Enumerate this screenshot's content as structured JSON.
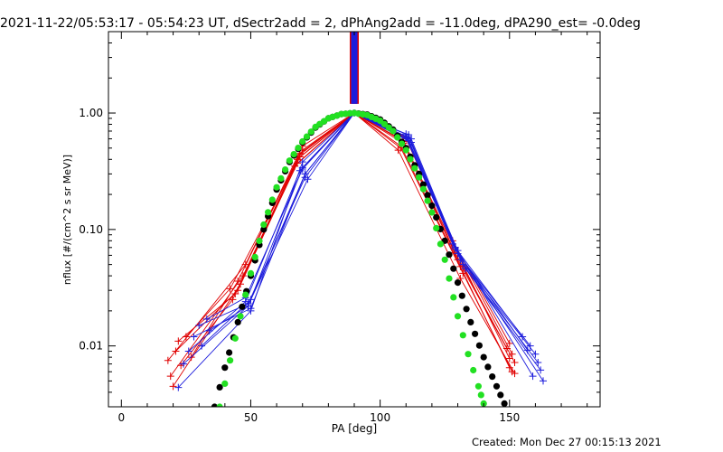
{
  "chart_data": {
    "type": "line",
    "title": "2021-11-22/05:53:17 - 05:54:23 UT, dSectr2add = 2, dPhAng2add = -11.0deg, dPA290_est= -0.0deg",
    "xlabel": "PA [deg]",
    "ylabel": "nflux [#/(cm^2 s sr MeV)]",
    "xlim": [
      -5,
      185
    ],
    "ylim": [
      0.003,
      5
    ],
    "yscale": "log",
    "xticks": [
      0,
      50,
      100,
      150
    ],
    "xtick_labels": [
      "0",
      "50",
      "100",
      "150"
    ],
    "yticks": [
      0.01,
      0.1,
      1.0
    ],
    "ytick_labels": [
      "0.01",
      "0.10",
      "1.00"
    ],
    "grid": false,
    "colors": {
      "red": "#e00000",
      "blue": "#1c1cdc",
      "green": "#22e022",
      "black": "#000000"
    },
    "series": [
      {
        "color": "red",
        "marker": "+",
        "x": [
          18,
          48,
          70,
          90,
          110,
          128,
          150
        ],
        "y": [
          0.0075,
          0.05,
          0.52,
          1.0,
          0.62,
          0.08,
          0.0105
        ]
      },
      {
        "color": "red",
        "marker": "+",
        "x": [
          19,
          47,
          70,
          90,
          110,
          129,
          151
        ],
        "y": [
          0.0055,
          0.04,
          0.48,
          1.0,
          0.6,
          0.07,
          0.0085
        ]
      },
      {
        "color": "red",
        "marker": "+",
        "x": [
          20,
          46,
          69,
          90,
          109,
          129,
          152
        ],
        "y": [
          0.0045,
          0.034,
          0.44,
          1.0,
          0.58,
          0.063,
          0.0072
        ]
      },
      {
        "color": "red",
        "marker": "+",
        "x": [
          21,
          45,
          69,
          90,
          109,
          130,
          149
        ],
        "y": [
          0.009,
          0.03,
          0.42,
          1.0,
          0.55,
          0.055,
          0.0095
        ]
      },
      {
        "color": "red",
        "marker": "+",
        "x": [
          22,
          44,
          68,
          90,
          108,
          131,
          150
        ],
        "y": [
          0.011,
          0.028,
          0.4,
          1.0,
          0.52,
          0.048,
          0.0065
        ]
      },
      {
        "color": "red",
        "marker": "+",
        "x": [
          23,
          43,
          68,
          90,
          108,
          132,
          151
        ],
        "y": [
          0.0068,
          0.025,
          0.37,
          1.0,
          0.5,
          0.042,
          0.006
        ]
      },
      {
        "color": "red",
        "marker": "+",
        "x": [
          25,
          42,
          67,
          90,
          107,
          131,
          152
        ],
        "y": [
          0.012,
          0.031,
          0.35,
          1.0,
          0.48,
          0.038,
          0.0058
        ]
      },
      {
        "color": "red",
        "marker": "+",
        "x": [
          27,
          45,
          69,
          90,
          109,
          128,
          150
        ],
        "y": [
          0.008,
          0.036,
          0.45,
          1.0,
          0.57,
          0.075,
          0.0078
        ]
      },
      {
        "color": "blue",
        "marker": "+",
        "x": [
          22,
          50,
          70,
          90,
          111,
          129,
          155
        ],
        "y": [
          0.0044,
          0.02,
          0.38,
          1.0,
          0.65,
          0.07,
          0.012
        ]
      },
      {
        "color": "blue",
        "marker": "+",
        "x": [
          24,
          49,
          70,
          90,
          110,
          130,
          158
        ],
        "y": [
          0.007,
          0.022,
          0.34,
          1.0,
          0.63,
          0.062,
          0.01
        ]
      },
      {
        "color": "blue",
        "marker": "+",
        "x": [
          26,
          48,
          69,
          90,
          110,
          131,
          160
        ],
        "y": [
          0.009,
          0.024,
          0.32,
          1.0,
          0.61,
          0.055,
          0.0085
        ]
      },
      {
        "color": "blue",
        "marker": "+",
        "x": [
          28,
          50,
          71,
          90,
          112,
          132,
          161
        ],
        "y": [
          0.012,
          0.021,
          0.3,
          1.0,
          0.6,
          0.05,
          0.0072
        ]
      },
      {
        "color": "blue",
        "marker": "+",
        "x": [
          30,
          49,
          71,
          90,
          111,
          133,
          162
        ],
        "y": [
          0.015,
          0.023,
          0.28,
          1.0,
          0.58,
          0.046,
          0.0062
        ]
      },
      {
        "color": "blue",
        "marker": "+",
        "x": [
          31,
          50,
          72,
          90,
          112,
          130,
          159
        ],
        "y": [
          0.01,
          0.025,
          0.27,
          1.0,
          0.56,
          0.066,
          0.0055
        ]
      },
      {
        "color": "blue",
        "marker": "+",
        "x": [
          33,
          48,
          70,
          90,
          110,
          128,
          163
        ],
        "y": [
          0.017,
          0.026,
          0.33,
          1.0,
          0.66,
          0.075,
          0.005
        ]
      },
      {
        "color": "blue",
        "marker": "+",
        "x": [
          34,
          49,
          71,
          90,
          111,
          129,
          157
        ],
        "y": [
          0.0135,
          0.022,
          0.3,
          1.0,
          0.62,
          0.068,
          0.0092
        ]
      }
    ],
    "model_curves": [
      {
        "color": "green",
        "style": "dotted-thick",
        "x": [
          38,
          42,
          46,
          50,
          55,
          60,
          65,
          70,
          75,
          80,
          85,
          90,
          95,
          100,
          105,
          110,
          115,
          120,
          125,
          130,
          134,
          138,
          140
        ],
        "y": [
          0.003,
          0.0075,
          0.018,
          0.042,
          0.11,
          0.23,
          0.39,
          0.57,
          0.76,
          0.9,
          0.98,
          1.0,
          0.96,
          0.86,
          0.7,
          0.48,
          0.28,
          0.14,
          0.055,
          0.018,
          0.0085,
          0.0045,
          0.0032
        ]
      },
      {
        "color": "black",
        "style": "dotted-thick",
        "x": [
          36,
          40,
          45,
          50,
          55,
          60,
          65,
          70,
          75,
          80,
          85,
          90,
          95,
          100,
          105,
          110,
          115,
          120,
          125,
          130,
          135,
          140,
          145,
          148
        ],
        "y": [
          0.003,
          0.0065,
          0.016,
          0.04,
          0.1,
          0.22,
          0.38,
          0.56,
          0.75,
          0.9,
          0.98,
          1.0,
          0.97,
          0.88,
          0.72,
          0.5,
          0.3,
          0.16,
          0.08,
          0.035,
          0.016,
          0.008,
          0.0045,
          0.0032
        ]
      }
    ],
    "bar_marker": {
      "x": 90,
      "y_from": 1.2,
      "y_to": 5,
      "colors": [
        "#e00000",
        "#1c1cdc"
      ]
    },
    "footer": "Created: Mon Dec 27 00:15:13 2021"
  }
}
